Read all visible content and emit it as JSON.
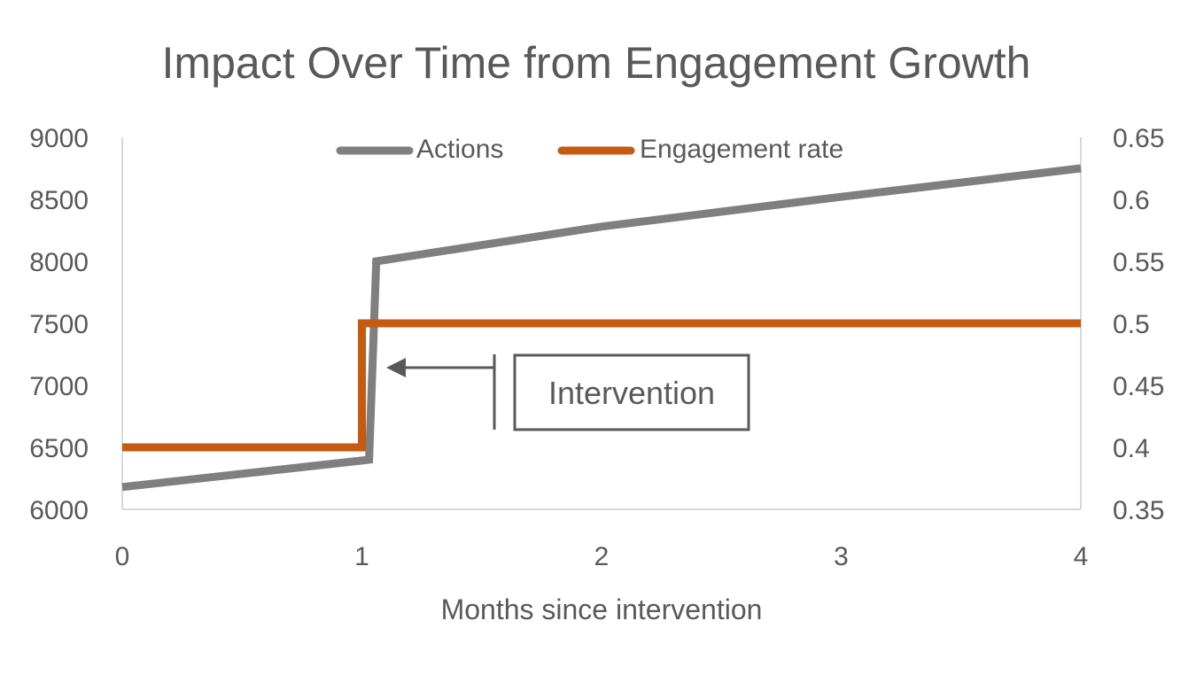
{
  "chart_data": {
    "type": "line",
    "title": "Impact Over Time from Engagement Growth",
    "xlabel": "Months since intervention",
    "ylabel": "",
    "y2label": "",
    "xlim": [
      0,
      4
    ],
    "ylim": [
      6000,
      9000
    ],
    "y2lim": [
      0.35,
      0.65
    ],
    "x_ticks": [
      "0",
      "1",
      "2",
      "3",
      "4"
    ],
    "y_ticks": [
      "6000",
      "6500",
      "7000",
      "7500",
      "8000",
      "8500",
      "9000"
    ],
    "y2_ticks": [
      "0.35",
      "0.4",
      "0.45",
      "0.5",
      "0.55",
      "0.6",
      "0.65"
    ],
    "grid": false,
    "legend_position": "top",
    "series": [
      {
        "name": "Actions",
        "axis": "left",
        "color": "#7f7f7f",
        "x": [
          0,
          1.03,
          1.06,
          2,
          3,
          4
        ],
        "y": [
          6180,
          6400,
          8000,
          8280,
          8520,
          8750
        ]
      },
      {
        "name": "Engagement rate",
        "axis": "right",
        "color": "#c55a11",
        "x": [
          0,
          1,
          1,
          4
        ],
        "y": [
          0.4,
          0.4,
          0.5,
          0.5
        ]
      }
    ],
    "annotations": [
      {
        "text": "Intervention",
        "x": 1,
        "y": 0.45,
        "arrow": "left"
      }
    ]
  }
}
